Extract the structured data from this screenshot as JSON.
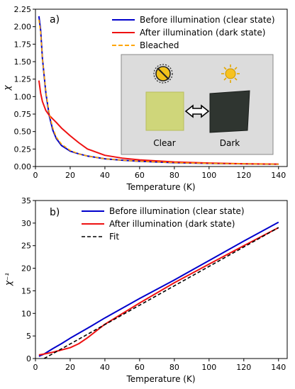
{
  "chart_data": [
    {
      "type": "line",
      "panel_label": "a)",
      "xlabel": "Temperature (K)",
      "ylabel": "χ",
      "xlim": [
        0,
        145
      ],
      "ylim": [
        0,
        2.25
      ],
      "xticks": [
        0,
        20,
        40,
        60,
        80,
        100,
        120,
        140
      ],
      "yticks": [
        0.0,
        0.25,
        0.5,
        0.75,
        1.0,
        1.25,
        1.5,
        1.75,
        2.0,
        2.25
      ],
      "yticks_labels": [
        "0.00",
        "0.25",
        "0.50",
        "0.75",
        "1.00",
        "1.25",
        "1.50",
        "1.75",
        "2.00",
        "2.25"
      ],
      "grid": false,
      "legend_position": "top-right",
      "series": [
        {
          "name": "Before illumination (clear state)",
          "color": "#0000cc",
          "style": "solid",
          "x": [
            2,
            3,
            4,
            6,
            8,
            10,
            12,
            15,
            20,
            25,
            30,
            40,
            50,
            60,
            80,
            100,
            120,
            140
          ],
          "y": [
            2.15,
            1.95,
            1.55,
            1.05,
            0.72,
            0.52,
            0.4,
            0.3,
            0.22,
            0.18,
            0.15,
            0.11,
            0.09,
            0.075,
            0.055,
            0.045,
            0.038,
            0.032
          ]
        },
        {
          "name": "After illumination (dark state)",
          "color": "#ee1111",
          "style": "solid",
          "x": [
            2,
            3,
            4,
            6,
            8,
            10,
            12,
            15,
            20,
            25,
            30,
            40,
            50,
            60,
            80,
            100,
            120,
            140
          ],
          "y": [
            1.23,
            1.05,
            0.93,
            0.8,
            0.73,
            0.68,
            0.63,
            0.55,
            0.44,
            0.34,
            0.25,
            0.16,
            0.12,
            0.095,
            0.065,
            0.05,
            0.04,
            0.034
          ]
        },
        {
          "name": "Bleached",
          "color": "#ffa500",
          "style": "dashed",
          "x": [
            2,
            3,
            4,
            6,
            8,
            10,
            12,
            15,
            20,
            25,
            30,
            40,
            50,
            60,
            80,
            100,
            120,
            140
          ],
          "y": [
            2.1,
            1.92,
            1.55,
            1.07,
            0.75,
            0.55,
            0.42,
            0.32,
            0.23,
            0.18,
            0.15,
            0.11,
            0.09,
            0.075,
            0.055,
            0.045,
            0.038,
            0.032
          ]
        }
      ],
      "inset": {
        "labels": [
          "Clear",
          "Dark"
        ],
        "colors": {
          "clear_sample": "#cfd67a",
          "dark_sample": "#2f3530",
          "background": "#dcdcdc"
        }
      }
    },
    {
      "type": "line",
      "panel_label": "b)",
      "xlabel": "Temperature (K)",
      "ylabel": "χ⁻¹",
      "xlim": [
        0,
        145
      ],
      "ylim": [
        0,
        35
      ],
      "xticks": [
        0,
        20,
        40,
        60,
        80,
        100,
        120,
        140
      ],
      "yticks": [
        0,
        5,
        10,
        15,
        20,
        25,
        30,
        35
      ],
      "yticks_labels": [
        "0",
        "5",
        "10",
        "15",
        "20",
        "25",
        "30",
        "35"
      ],
      "grid": false,
      "legend_position": "top-left",
      "series": [
        {
          "name": "Before illumination (clear state)",
          "color": "#0000cc",
          "style": "solid",
          "x": [
            2,
            5,
            10,
            15,
            20,
            30,
            40,
            60,
            80,
            100,
            120,
            140
          ],
          "y": [
            0.5,
            1.0,
            2.2,
            3.3,
            4.5,
            6.7,
            9.0,
            13.3,
            17.4,
            21.7,
            26.0,
            30.2
          ]
        },
        {
          "name": "After illumination (dark state)",
          "color": "#ee1111",
          "style": "solid",
          "x": [
            2,
            5,
            10,
            15,
            20,
            25,
            30,
            40,
            60,
            80,
            100,
            120,
            140
          ],
          "y": [
            0.8,
            1.0,
            1.4,
            1.9,
            2.4,
            3.3,
            4.6,
            7.6,
            12.3,
            16.8,
            20.9,
            25.0,
            29.0
          ]
        },
        {
          "name": "Fit",
          "color": "#000000",
          "style": "dashed",
          "x": [
            5,
            140
          ],
          "y": [
            0.0,
            29.0
          ]
        }
      ]
    }
  ]
}
